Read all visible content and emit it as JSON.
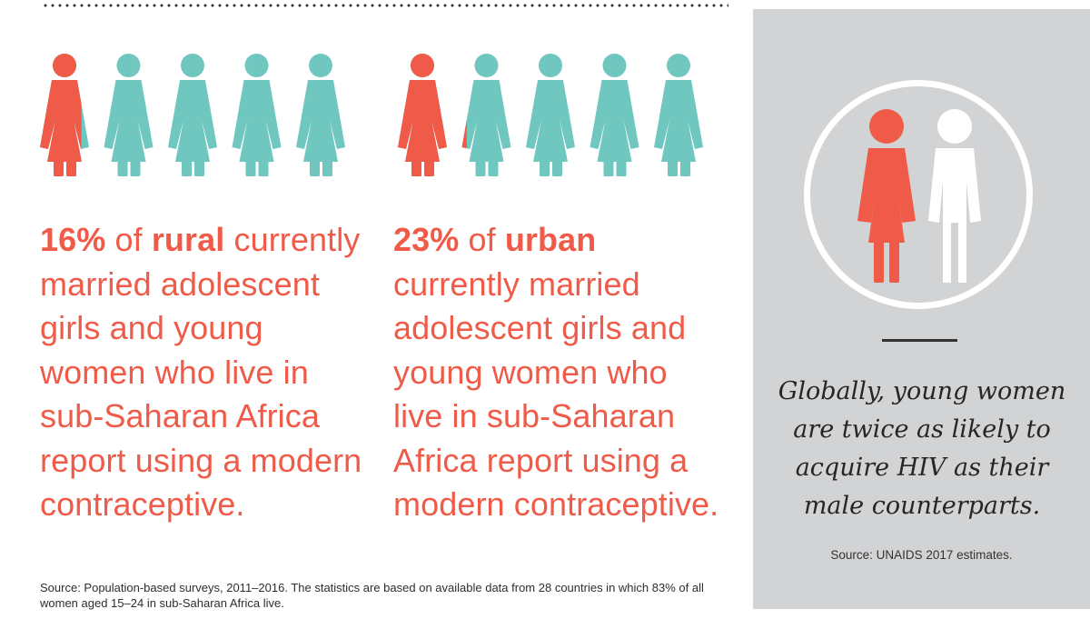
{
  "colors": {
    "coral": "#ef5b48",
    "teal": "#6fc7c0",
    "panel_bg": "#d2d3d5",
    "white": "#ffffff"
  },
  "rural": {
    "percent_text": "16%",
    "of_text": "of",
    "category": "rural",
    "body": "currently married adolescent girls and young women who live in sub-Saharan Africa report using a modern contraceptive.",
    "figures_coral_fraction": 0.8,
    "figures_count": 5,
    "percent_value": 16
  },
  "urban": {
    "percent_text": "23%",
    "of_text": "of",
    "category": "urban",
    "body": "currently married adolescent girls and young women who live in sub-Saharan Africa report using a modern contraceptive.",
    "figures_coral_fraction": 1.15,
    "figures_count": 5,
    "percent_value": 23
  },
  "source_main": "Source: Population-based surveys, 2011–2016. The statistics are based on available data from 28 countries in which 83% of all women aged 15–24 in sub-Saharan Africa live.",
  "sidebar": {
    "icons": [
      "woman-icon",
      "man-icon"
    ],
    "quote": "Globally, young women are twice as likely to acquire HIV as their male counterparts.",
    "source": "Source: UNAIDS 2017 estimates."
  }
}
